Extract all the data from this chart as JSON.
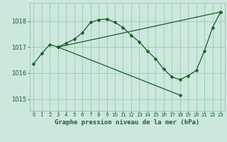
{
  "xlabel": "Graphe pression niveau de la mer (hPa)",
  "background_color": "#cce8dc",
  "plot_bg_color": "#cce8dc",
  "xaxis_bg_color": "#4a7a5a",
  "grid_color": "#99ccb4",
  "line_color": "#1a5c2a",
  "spine_color": "#88bbaa",
  "ylim": [
    1014.55,
    1018.7
  ],
  "xlim": [
    -0.5,
    23.5
  ],
  "yticks": [
    1015,
    1016,
    1017,
    1018
  ],
  "xticks": [
    0,
    1,
    2,
    3,
    4,
    5,
    6,
    7,
    8,
    9,
    10,
    11,
    12,
    13,
    14,
    15,
    16,
    17,
    18,
    19,
    20,
    21,
    22,
    23
  ],
  "line1_x": [
    0,
    1,
    2,
    3,
    4,
    5,
    6,
    7,
    8,
    9,
    10,
    11,
    12,
    13,
    14,
    15,
    16,
    17,
    18,
    19,
    20,
    21,
    22,
    23
  ],
  "line1_y": [
    1016.35,
    1016.75,
    1017.1,
    1017.0,
    1017.15,
    1017.3,
    1017.55,
    1017.95,
    1018.05,
    1018.08,
    1017.95,
    1017.75,
    1017.45,
    1017.2,
    1016.85,
    1016.55,
    1016.15,
    1015.85,
    1015.75,
    1015.9,
    1016.1,
    1016.85,
    1017.75,
    1018.35
  ],
  "line2_x": [
    3,
    23
  ],
  "line2_y": [
    1017.0,
    1018.35
  ],
  "line3_x": [
    3,
    18
  ],
  "line3_y": [
    1017.0,
    1015.15
  ],
  "markersize": 2.5,
  "linewidth": 0.9
}
